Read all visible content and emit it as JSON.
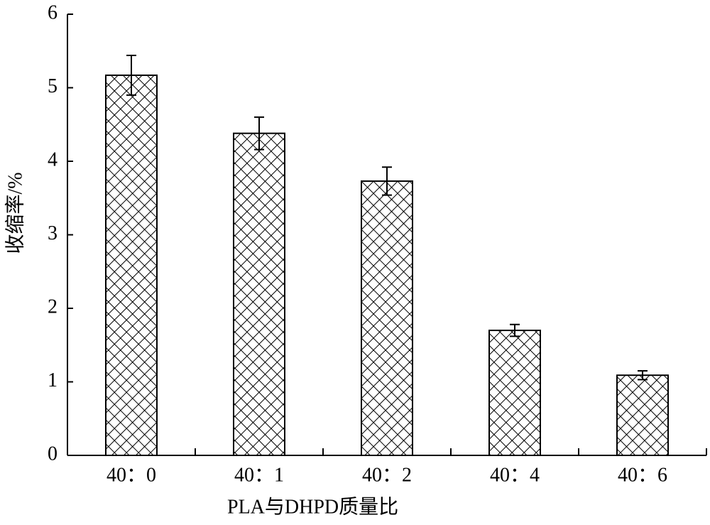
{
  "chart_data": {
    "type": "bar",
    "x_label": "PLA与DHPD质量比",
    "y_label": "收缩率/%",
    "categories": [
      "40：0",
      "40：1",
      "40：2",
      "40：4",
      "40：6"
    ],
    "values": [
      5.17,
      4.38,
      3.73,
      1.7,
      1.09
    ],
    "errors": [
      0.27,
      0.22,
      0.19,
      0.08,
      0.06
    ],
    "color": "#000000",
    "ylim": [
      0,
      6
    ],
    "yticks": [
      0,
      1,
      2,
      3,
      4,
      5,
      6
    ],
    "grid": false
  }
}
